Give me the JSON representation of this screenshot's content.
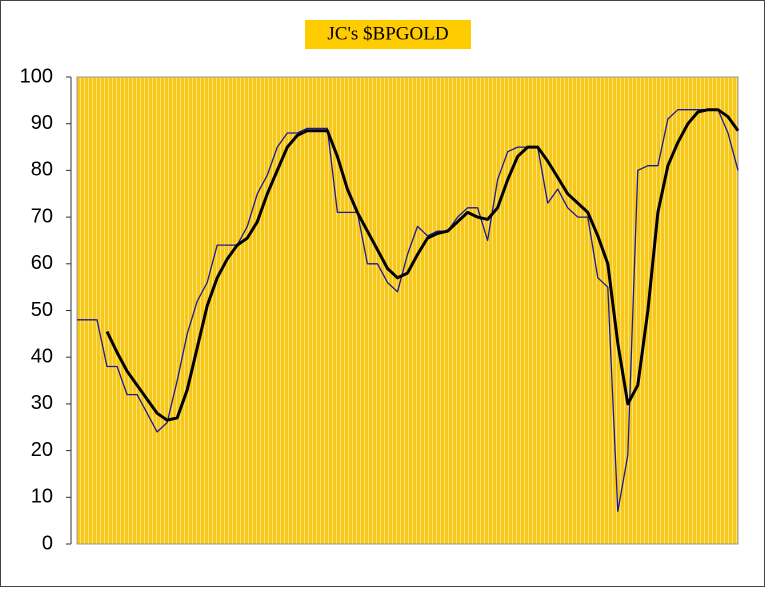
{
  "chart_data": {
    "type": "line",
    "title": "JC's $BPGOLD",
    "categories": [
      null,
      null,
      null,
      null,
      null,
      null,
      null,
      null,
      null,
      null,
      null,
      null,
      null,
      null,
      null,
      null,
      null,
      null,
      null,
      null,
      null,
      null,
      null,
      null,
      null,
      null,
      null,
      null,
      null,
      null,
      null,
      null,
      null,
      null,
      null,
      null,
      null,
      null,
      null,
      null,
      null,
      null,
      null,
      null,
      null,
      null,
      null,
      null,
      null,
      null,
      null,
      null,
      null,
      null,
      null,
      null,
      null,
      null,
      null,
      null,
      null,
      null,
      null,
      null,
      null,
      null,
      null
    ],
    "series": [
      {
        "color": "#1a1a9a",
        "width": 1.3,
        "values": [
          48,
          48,
          48,
          38,
          38,
          32,
          32,
          28,
          24,
          26,
          35,
          45,
          52,
          56,
          64,
          64,
          64,
          68,
          75,
          79,
          85,
          88,
          88,
          89,
          89,
          89,
          71,
          71,
          71,
          60,
          60,
          56,
          54,
          62,
          68,
          66,
          67,
          67,
          70,
          72,
          72,
          65,
          78,
          84,
          85,
          85,
          85,
          73,
          76,
          72,
          70,
          70,
          57,
          55,
          7,
          19,
          80,
          81,
          81,
          91,
          93,
          93,
          93,
          93,
          93,
          88,
          80
        ]
      },
      {
        "color": "#000000",
        "width": 3,
        "values": [
          null,
          null,
          null,
          45.5,
          41,
          37,
          34,
          31,
          28,
          26.5,
          27,
          33,
          42,
          51,
          57,
          61,
          64,
          65.5,
          69,
          75,
          80,
          85,
          87.5,
          88.5,
          88.5,
          88.5,
          83,
          76,
          71,
          67,
          63,
          59,
          57,
          58,
          62,
          65.5,
          66.5,
          67,
          69,
          71,
          70,
          69.5,
          72,
          78,
          83,
          85,
          85,
          82,
          78.5,
          75,
          73,
          71,
          66,
          60,
          43,
          30,
          34,
          50,
          71,
          81,
          86,
          90,
          92.5,
          93,
          93,
          91.5,
          88.5
        ]
      }
    ],
    "ylim": [
      0,
      100
    ],
    "yticks": [
      0,
      10,
      20,
      30,
      40,
      50,
      60,
      70,
      80,
      90,
      100
    ]
  }
}
